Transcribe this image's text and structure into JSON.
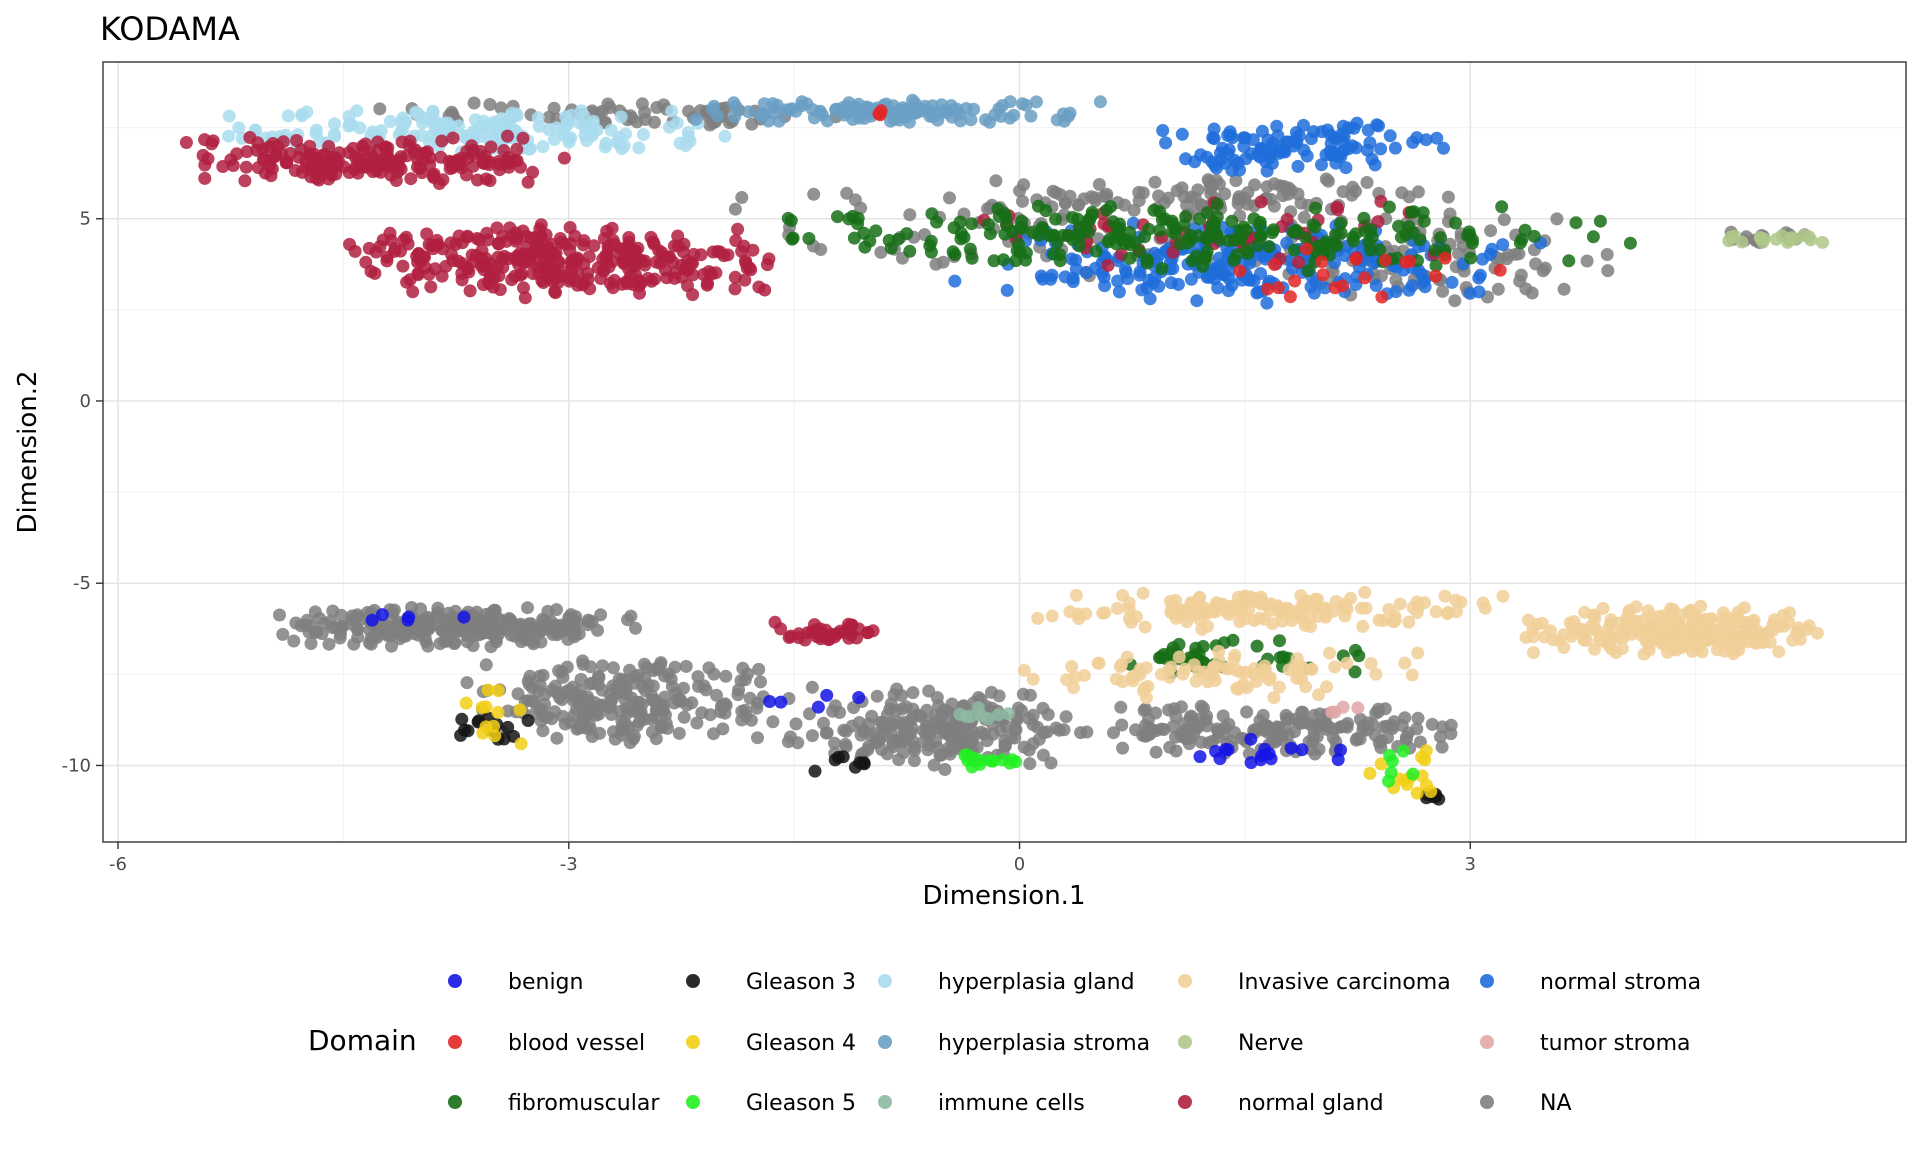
{
  "chart_data": {
    "type": "scatter",
    "title": "KODAMA",
    "xlabel": "Dimension.1",
    "ylabel": "Dimension.2",
    "xlim": [
      -6.1,
      5.9
    ],
    "ylim": [
      -12.1,
      9.3
    ],
    "x_ticks": [
      -6,
      -3,
      0,
      3
    ],
    "x_tick_labels": [
      "-6",
      "-3",
      "0",
      "3"
    ],
    "y_ticks": [
      -10,
      -5,
      0,
      5
    ],
    "y_tick_labels": [
      "-10",
      "-5",
      "0",
      "5"
    ],
    "grid": true,
    "theme": "bw",
    "legend": {
      "title": "Domain",
      "position": "bottom",
      "entries": [
        {
          "label": "benign",
          "color": "#1414e6"
        },
        {
          "label": "blood vessel",
          "color": "#e32626"
        },
        {
          "label": "fibromuscular",
          "color": "#166e16"
        },
        {
          "label": "Gleason 3",
          "color": "#141414"
        },
        {
          "label": "Gleason 4",
          "color": "#f2cf16"
        },
        {
          "label": "Gleason 5",
          "color": "#22f022"
        },
        {
          "label": "hyperplasia gland",
          "color": "#a9dcee"
        },
        {
          "label": "hyperplasia stroma",
          "color": "#6b9fc4"
        },
        {
          "label": "immune cells",
          "color": "#8db9a2"
        },
        {
          "label": "Invasive carcinoma",
          "color": "#f1cf98"
        },
        {
          "label": "Nerve",
          "color": "#afc78a"
        },
        {
          "label": "normal gland",
          "color": "#b0203f"
        },
        {
          "label": "normal stroma",
          "color": "#1f6ddb"
        },
        {
          "label": "tumor stroma",
          "color": "#e1a6a6"
        },
        {
          "label": "NA",
          "color": "#7f7f7f"
        }
      ]
    },
    "series": [
      {
        "name": "NA",
        "clusters": [
          {
            "x": [
              -5.0,
              -2.5
            ],
            "y": [
              -6.8,
              -5.6
            ],
            "n": 280
          },
          {
            "x": [
              -3.8,
              -1.5
            ],
            "y": [
              -9.4,
              -7.0
            ],
            "n": 240
          },
          {
            "x": [
              -1.6,
              0.4
            ],
            "y": [
              -10.3,
              -7.8
            ],
            "n": 220
          },
          {
            "x": [
              0.3,
              3.1
            ],
            "y": [
              -9.8,
              -8.3
            ],
            "n": 180
          },
          {
            "x": [
              -0.3,
              3.0
            ],
            "y": [
              5.0,
              6.2
            ],
            "n": 100
          },
          {
            "x": [
              1.2,
              4.0
            ],
            "y": [
              2.6,
              5.6
            ],
            "n": 110
          },
          {
            "x": [
              -4.3,
              -1.0
            ],
            "y": [
              7.5,
              8.2
            ],
            "n": 70
          },
          {
            "x": [
              -2.0,
              1.5
            ],
            "y": [
              3.0,
              6.5
            ],
            "n": 60
          },
          {
            "x": [
              4.5,
              5.4
            ],
            "y": [
              4.3,
              4.7
            ],
            "n": 18
          }
        ]
      },
      {
        "name": "hyperplasia gland",
        "clusters": [
          {
            "x": [
              -5.4,
              -1.8
            ],
            "y": [
              6.7,
              8.1
            ],
            "n": 170
          }
        ]
      },
      {
        "name": "hyperplasia stroma",
        "clusters": [
          {
            "x": [
              -2.4,
              0.6
            ],
            "y": [
              7.6,
              8.3
            ],
            "n": 130
          }
        ]
      },
      {
        "name": "normal stroma",
        "clusters": [
          {
            "x": [
              0.8,
              2.9
            ],
            "y": [
              6.2,
              7.8
            ],
            "n": 110
          },
          {
            "x": [
              -0.5,
              3.5
            ],
            "y": [
              2.6,
              5.0
            ],
            "n": 240
          }
        ]
      },
      {
        "name": "normal gland",
        "clusters": [
          {
            "x": [
              -5.6,
              -3.0
            ],
            "y": [
              5.9,
              7.3
            ],
            "n": 200
          },
          {
            "x": [
              -4.6,
              -1.5
            ],
            "y": [
              2.8,
              4.9
            ],
            "n": 320
          },
          {
            "x": [
              -1.8,
              -0.8
            ],
            "y": [
              -6.7,
              -6.0
            ],
            "n": 40
          },
          {
            "x": [
              -0.5,
              3.5
            ],
            "y": [
              3.5,
              5.8
            ],
            "n": 50
          }
        ]
      },
      {
        "name": "fibromuscular",
        "clusters": [
          {
            "x": [
              -1.8,
              4.1
            ],
            "y": [
              3.5,
              5.5
            ],
            "n": 240
          },
          {
            "x": [
              0.3,
              2.5
            ],
            "y": [
              -7.5,
              -6.5
            ],
            "n": 40
          }
        ]
      },
      {
        "name": "blood vessel",
        "clusters": [
          {
            "x": [
              0.8,
              3.5
            ],
            "y": [
              2.8,
              4.5
            ],
            "n": 20
          },
          {
            "x": [
              -1.0,
              -0.8
            ],
            "y": [
              7.8,
              8.0
            ],
            "n": 3
          }
        ]
      },
      {
        "name": "Invasive carcinoma",
        "clusters": [
          {
            "x": [
              3.3,
              5.4
            ],
            "y": [
              -7.0,
              -5.6
            ],
            "n": 260
          },
          {
            "x": [
              0.0,
              3.3
            ],
            "y": [
              -6.3,
              -5.2
            ],
            "n": 150
          },
          {
            "x": [
              0.0,
              2.8
            ],
            "y": [
              -8.2,
              -6.8
            ],
            "n": 90
          }
        ]
      },
      {
        "name": "Nerve",
        "clusters": [
          {
            "x": [
              4.6,
              5.4
            ],
            "y": [
              4.3,
              4.6
            ],
            "n": 18
          }
        ]
      },
      {
        "name": "Gleason 3",
        "clusters": [
          {
            "x": [
              -3.8,
              -3.2
            ],
            "y": [
              -9.5,
              -8.5
            ],
            "n": 14
          },
          {
            "x": [
              -1.6,
              -0.9
            ],
            "y": [
              -10.2,
              -9.6
            ],
            "n": 8
          },
          {
            "x": [
              2.6,
              2.9
            ],
            "y": [
              -11.0,
              -10.7
            ],
            "n": 6
          }
        ]
      },
      {
        "name": "Gleason 4",
        "clusters": [
          {
            "x": [
              -3.8,
              -3.2
            ],
            "y": [
              -9.9,
              -7.6
            ],
            "n": 12
          },
          {
            "x": [
              2.3,
              3.0
            ],
            "y": [
              -11.0,
              -9.5
            ],
            "n": 14
          }
        ]
      },
      {
        "name": "Gleason 5",
        "clusters": [
          {
            "x": [
              -0.4,
              0.0
            ],
            "y": [
              -10.1,
              -9.7
            ],
            "n": 16
          },
          {
            "x": [
              2.4,
              2.7
            ],
            "y": [
              -10.6,
              -9.4
            ],
            "n": 6
          }
        ]
      },
      {
        "name": "benign",
        "clusters": [
          {
            "x": [
              1.1,
              2.2
            ],
            "y": [
              -10.0,
              -9.2
            ],
            "n": 16
          },
          {
            "x": [
              -4.5,
              -3.5
            ],
            "y": [
              -6.2,
              -5.7
            ],
            "n": 5
          },
          {
            "x": [
              -2.3,
              -0.8
            ],
            "y": [
              -8.5,
              -8.0
            ],
            "n": 5
          }
        ]
      },
      {
        "name": "immune cells",
        "clusters": [
          {
            "x": [
              -0.5,
              0.0
            ],
            "y": [
              -8.8,
              -8.4
            ],
            "n": 8
          }
        ]
      },
      {
        "name": "tumor stroma",
        "clusters": [
          {
            "x": [
              2.0,
              2.3
            ],
            "y": [
              -8.6,
              -8.3
            ],
            "n": 4
          }
        ]
      }
    ]
  }
}
